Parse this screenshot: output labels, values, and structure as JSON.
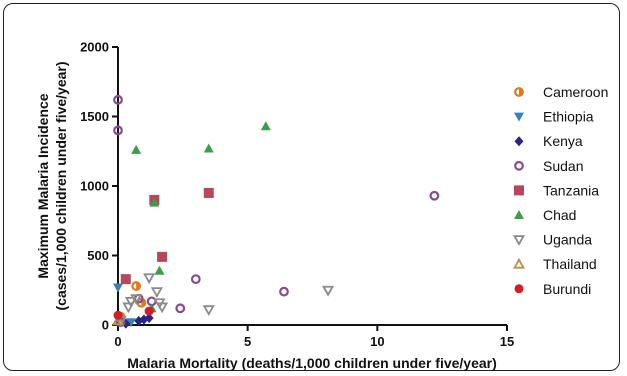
{
  "chart_data": {
    "type": "scatter",
    "xlabel": "Malaria Mortality (deaths/1,000 children under five/year)",
    "ylabel_line1": "Maximum Malaria Incidence",
    "ylabel_line2": "(cases/1,000 children under five/year)",
    "xlim": [
      0,
      15
    ],
    "ylim": [
      0,
      2000
    ],
    "x_ticks": [
      0,
      5,
      10,
      15
    ],
    "x_tick_labels": [
      "0",
      "5",
      "10",
      "15"
    ],
    "y_ticks": [
      0,
      500,
      1000,
      1500,
      2000
    ],
    "y_tick_labels": [
      "0",
      "500",
      "1000",
      "1500",
      "2000"
    ],
    "grid": false,
    "legend_position": "right",
    "series": [
      {
        "name": "Cameroon",
        "marker": "half-circle",
        "color": "#e07a1a",
        "points": [
          [
            0.7,
            280
          ],
          [
            0.1,
            60
          ],
          [
            0.9,
            160
          ]
        ]
      },
      {
        "name": "Ethiopia",
        "marker": "triangle-down",
        "color": "#3b82b8",
        "points": [
          [
            0.0,
            270
          ],
          [
            0.5,
            20
          ]
        ]
      },
      {
        "name": "Kenya",
        "marker": "diamond",
        "color": "#2a2480",
        "points": [
          [
            0.8,
            30
          ],
          [
            1.0,
            40
          ],
          [
            1.2,
            50
          ],
          [
            0.3,
            10
          ]
        ]
      },
      {
        "name": "Sudan",
        "marker": "circle-open",
        "color": "#8b4a8c",
        "points": [
          [
            0.0,
            1620
          ],
          [
            0.0,
            1400
          ],
          [
            12.2,
            930
          ],
          [
            3.0,
            330
          ],
          [
            6.4,
            240
          ],
          [
            2.4,
            120
          ],
          [
            1.3,
            170
          ],
          [
            0.8,
            190
          ],
          [
            0.1,
            20
          ]
        ]
      },
      {
        "name": "Tanzania",
        "marker": "square",
        "color": "#b5485d",
        "points": [
          [
            1.4,
            900
          ],
          [
            3.5,
            950
          ],
          [
            1.7,
            490
          ],
          [
            0.3,
            330
          ]
        ]
      },
      {
        "name": "Chad",
        "marker": "triangle-up",
        "color": "#3a9e4a",
        "points": [
          [
            5.7,
            1430
          ],
          [
            3.5,
            1270
          ],
          [
            0.7,
            1260
          ],
          [
            1.4,
            880
          ],
          [
            1.6,
            390
          ],
          [
            1.3,
            120
          ]
        ]
      },
      {
        "name": "Uganda",
        "marker": "triangle-down-open",
        "color": "#8a8a8a",
        "points": [
          [
            8.1,
            250
          ],
          [
            3.5,
            110
          ],
          [
            1.2,
            340
          ],
          [
            1.5,
            240
          ],
          [
            1.6,
            160
          ],
          [
            0.7,
            190
          ],
          [
            0.5,
            170
          ],
          [
            0.4,
            130
          ],
          [
            0.1,
            30
          ],
          [
            1.7,
            130
          ]
        ]
      },
      {
        "name": "Thailand",
        "marker": "triangle-up-open",
        "color": "#b59050",
        "points": [
          [
            0.0,
            30
          ]
        ]
      },
      {
        "name": "Burundi",
        "marker": "circle",
        "color": "#d11f2a",
        "points": [
          [
            1.2,
            100
          ],
          [
            0.0,
            70
          ]
        ]
      }
    ]
  }
}
